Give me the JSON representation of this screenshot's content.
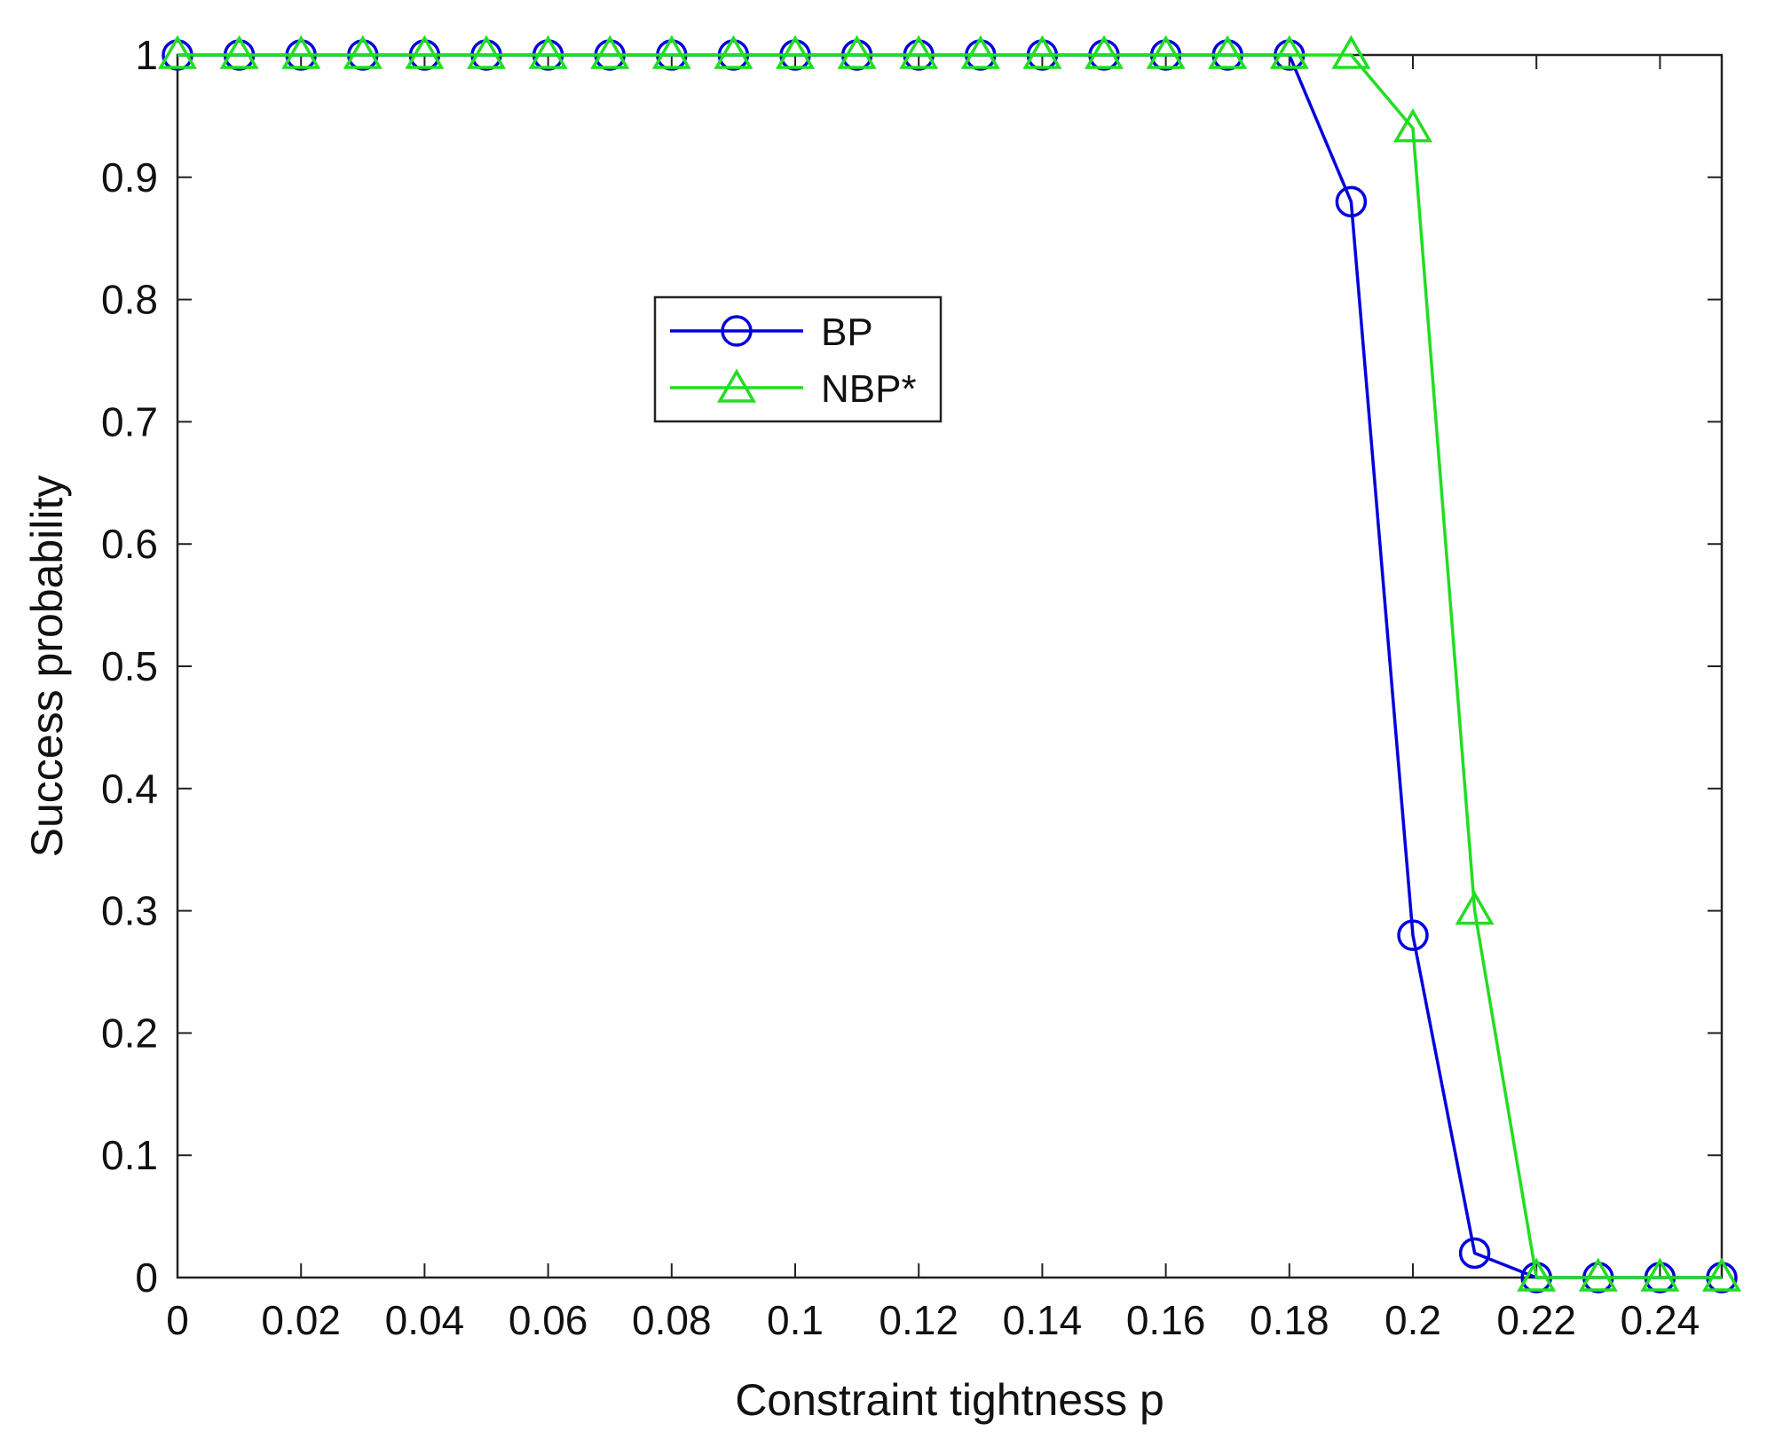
{
  "chart_data": {
    "type": "line",
    "xlabel": "Constraint tightness p",
    "ylabel": "Success probability",
    "xlim": [
      0,
      0.25
    ],
    "ylim": [
      0,
      1
    ],
    "xticks": [
      0,
      0.02,
      0.04,
      0.06,
      0.08,
      0.1,
      0.12,
      0.14,
      0.16,
      0.18,
      0.2,
      0.22,
      0.24
    ],
    "xtick_labels": [
      "0",
      "0.02",
      "0.04",
      "0.06",
      "0.08",
      "0.1",
      "0.12",
      "0.14",
      "0.16",
      "0.18",
      "0.2",
      "0.22",
      "0.24"
    ],
    "yticks": [
      0,
      0.1,
      0.2,
      0.3,
      0.4,
      0.5,
      0.6,
      0.7,
      0.8,
      0.9,
      1
    ],
    "ytick_labels": [
      "0",
      "0.1",
      "0.2",
      "0.3",
      "0.4",
      "0.5",
      "0.6",
      "0.7",
      "0.8",
      "0.9",
      "1"
    ],
    "grid": false,
    "legend_position": "upper-left inside",
    "x": [
      0,
      0.01,
      0.02,
      0.03,
      0.04,
      0.05,
      0.06,
      0.07,
      0.08,
      0.09,
      0.1,
      0.11,
      0.12,
      0.13,
      0.14,
      0.15,
      0.16,
      0.17,
      0.18,
      0.19,
      0.2,
      0.21,
      0.22,
      0.23,
      0.24,
      0.25
    ],
    "series": [
      {
        "name": "BP",
        "color": "#0000dd",
        "marker": "circle",
        "values": [
          1,
          1,
          1,
          1,
          1,
          1,
          1,
          1,
          1,
          1,
          1,
          1,
          1,
          1,
          1,
          1,
          1,
          1,
          1,
          0.88,
          0.28,
          0.02,
          0,
          0,
          0,
          0
        ]
      },
      {
        "name": "NBP*",
        "color": "#22dd22",
        "marker": "triangle",
        "values": [
          1,
          1,
          1,
          1,
          1,
          1,
          1,
          1,
          1,
          1,
          1,
          1,
          1,
          1,
          1,
          1,
          1,
          1,
          1,
          1,
          0.94,
          0.3,
          0,
          0,
          0,
          0
        ]
      }
    ]
  }
}
